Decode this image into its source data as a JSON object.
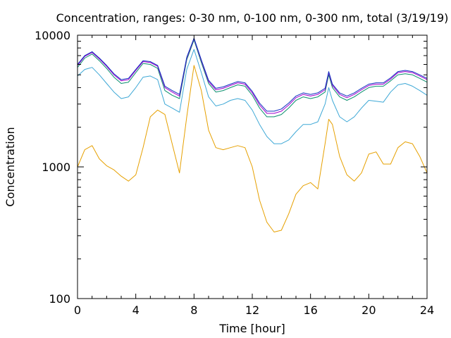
{
  "chart_data": {
    "type": "line",
    "title": "Concentration, ranges: 0-30 nm, 0-100 nm, 0-300 nm, total (3/19/19)",
    "xlabel": "Time [hour]",
    "ylabel": "Concentration",
    "xlim": [
      0,
      24
    ],
    "ylim": [
      100,
      10000
    ],
    "yscale": "log",
    "grid": false,
    "legend": "none",
    "x_ticks": [
      0,
      4,
      8,
      12,
      16,
      20,
      24
    ],
    "x_tick_labels": [
      "0",
      "4",
      "8",
      "12",
      "16",
      "20",
      "24"
    ],
    "y_ticks": [
      100,
      1000,
      10000
    ],
    "y_tick_labels": [
      "100",
      "1000",
      "10000"
    ],
    "x": [
      0,
      0.5,
      1,
      1.5,
      2,
      2.5,
      3,
      3.5,
      4,
      4.5,
      5,
      5.5,
      6,
      6.5,
      7,
      7.5,
      8,
      8.5,
      9,
      9.5,
      10,
      10.5,
      11,
      11.5,
      12,
      12.5,
      13,
      13.5,
      14,
      14.5,
      15,
      15.5,
      16,
      16.5,
      17,
      17.25,
      17.5,
      18,
      18.5,
      19,
      19.5,
      20,
      20.5,
      21,
      21.5,
      22,
      22.5,
      23,
      23.5,
      24
    ],
    "series": [
      {
        "color": "#e6a000",
        "values": [
          1000,
          1350,
          1450,
          1150,
          1020,
          950,
          850,
          780,
          870,
          1400,
          2400,
          2700,
          2500,
          1500,
          900,
          2400,
          5900,
          3800,
          1900,
          1400,
          1350,
          1400,
          1450,
          1400,
          1000,
          560,
          380,
          320,
          330,
          440,
          620,
          720,
          760,
          680,
          1500,
          2300,
          2100,
          1200,
          870,
          780,
          900,
          1250,
          1300,
          1050,
          1050,
          1400,
          1550,
          1500,
          1200,
          900
        ]
      },
      {
        "color": "#3ea8d6",
        "values": [
          4900,
          5500,
          5700,
          5000,
          4300,
          3700,
          3300,
          3400,
          4000,
          4800,
          4900,
          4600,
          3000,
          2800,
          2600,
          5500,
          7800,
          5200,
          3400,
          2900,
          3000,
          3200,
          3300,
          3200,
          2700,
          2100,
          1700,
          1500,
          1500,
          1600,
          1850,
          2100,
          2100,
          2200,
          3000,
          4000,
          3200,
          2400,
          2200,
          2400,
          2800,
          3200,
          3150,
          3100,
          3700,
          4200,
          4300,
          4100,
          3800,
          3500
        ]
      },
      {
        "color": "#0a8f6e",
        "values": [
          5700,
          6700,
          7200,
          6400,
          5600,
          4800,
          4300,
          4400,
          5200,
          6100,
          6000,
          5600,
          3800,
          3500,
          3300,
          6500,
          9200,
          6200,
          4300,
          3700,
          3800,
          4000,
          4200,
          4100,
          3500,
          2800,
          2400,
          2400,
          2500,
          2800,
          3200,
          3400,
          3300,
          3400,
          3700,
          5000,
          4000,
          3400,
          3200,
          3400,
          3700,
          4000,
          4100,
          4100,
          4500,
          5000,
          5100,
          5000,
          4700,
          4400
        ]
      },
      {
        "color": "#a000d0",
        "values": [
          5900,
          6900,
          7400,
          6600,
          5800,
          5000,
          4500,
          4600,
          5400,
          6300,
          6200,
          5800,
          4000,
          3700,
          3450,
          6700,
          9400,
          6400,
          4450,
          3850,
          3950,
          4150,
          4350,
          4250,
          3650,
          2950,
          2550,
          2550,
          2650,
          2950,
          3350,
          3550,
          3450,
          3550,
          3850,
          5200,
          4150,
          3550,
          3350,
          3550,
          3850,
          4150,
          4250,
          4250,
          4650,
          5200,
          5300,
          5200,
          4900,
          4600
        ]
      },
      {
        "color": "#1030c0",
        "values": [
          6000,
          7000,
          7500,
          6700,
          5900,
          5100,
          4600,
          4700,
          5500,
          6400,
          6300,
          5900,
          4100,
          3800,
          3550,
          6800,
          9500,
          6500,
          4550,
          3950,
          4050,
          4250,
          4450,
          4350,
          3750,
          3050,
          2650,
          2650,
          2750,
          3050,
          3450,
          3650,
          3550,
          3650,
          3950,
          5300,
          4250,
          3650,
          3450,
          3650,
          3950,
          4250,
          4350,
          4350,
          4750,
          5300,
          5400,
          5300,
          5000,
          4700
        ]
      }
    ]
  }
}
